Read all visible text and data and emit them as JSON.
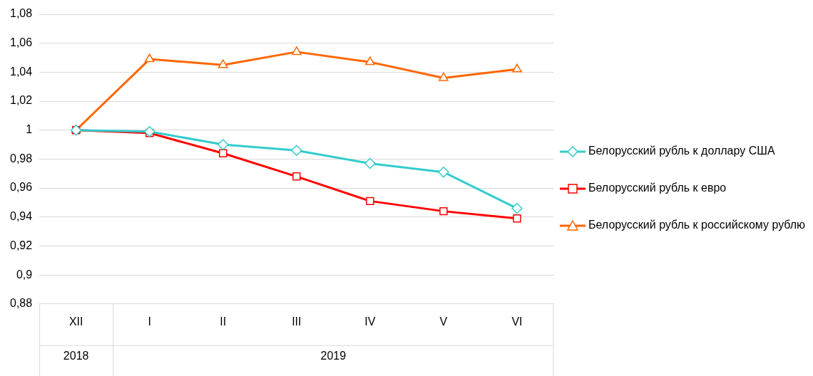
{
  "chart_data": {
    "type": "line",
    "categories": [
      "XII",
      "I",
      "II",
      "III",
      "IV",
      "V",
      "VI"
    ],
    "series": [
      {
        "name": "Белорусский рубль к доллару США",
        "color": "#33cccc",
        "marker": "diamond",
        "values": [
          1,
          0.999,
          0.99,
          0.986,
          0.977,
          0.971,
          0.946
        ]
      },
      {
        "name": "Белорусский рубль к евро",
        "color": "#ff0000",
        "marker": "square",
        "values": [
          1,
          0.998,
          0.984,
          0.968,
          0.951,
          0.944,
          0.939
        ]
      },
      {
        "name": "Белорусский рубль к российскому рублю",
        "color": "#ff6600",
        "marker": "triangle",
        "values": [
          1,
          1.049,
          1.045,
          1.054,
          1.047,
          1.036,
          1.042
        ]
      }
    ],
    "ylim": [
      0.88,
      1.08
    ],
    "yticks": [
      {
        "value": 0.88,
        "label": "0,88"
      },
      {
        "value": 0.9,
        "label": "0,9"
      },
      {
        "value": 0.92,
        "label": "0,92"
      },
      {
        "value": 0.94,
        "label": "0,94"
      },
      {
        "value": 0.96,
        "label": "0,96"
      },
      {
        "value": 0.98,
        "label": "0,98"
      },
      {
        "value": 1,
        "label": "1"
      },
      {
        "value": 1.02,
        "label": "1,02"
      },
      {
        "value": 1.04,
        "label": "1,04"
      },
      {
        "value": 1.06,
        "label": "1,06"
      },
      {
        "value": 1.08,
        "label": "1,08"
      }
    ],
    "annotations": [
      "2018",
      "2019"
    ],
    "grid": "y",
    "legend": "right",
    "line_style": "solid"
  }
}
